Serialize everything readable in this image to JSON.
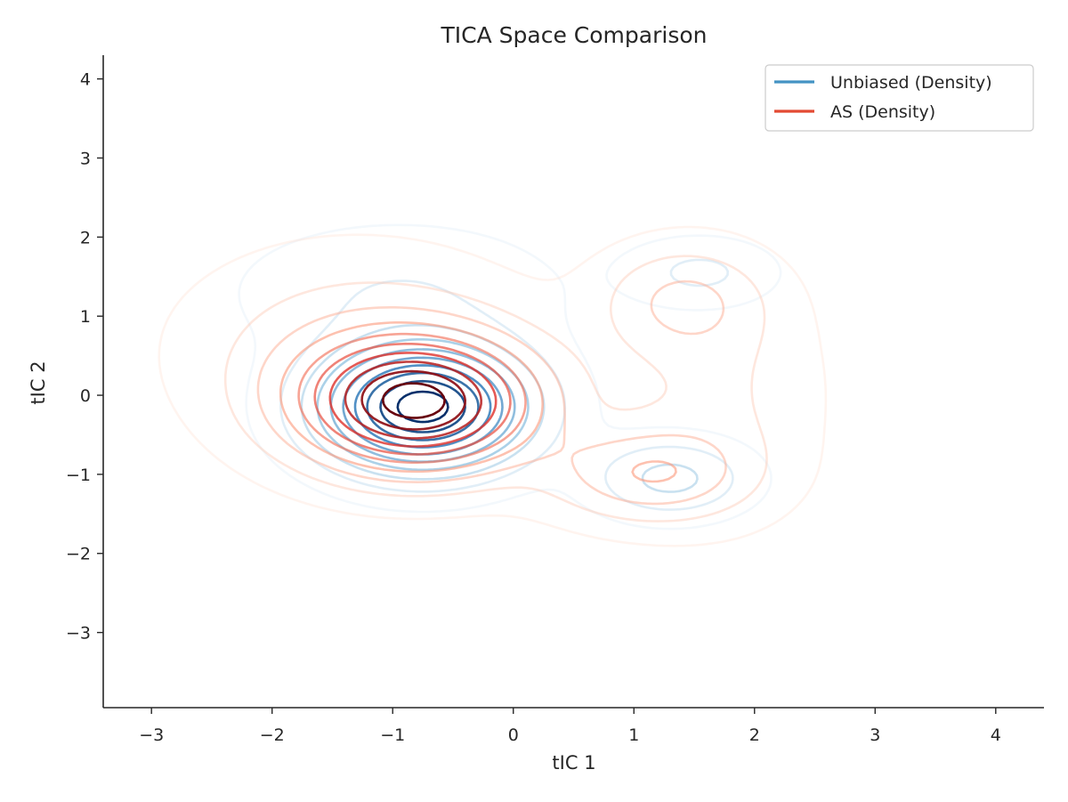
{
  "chart_data": {
    "type": "contour",
    "title": "TICA Space Comparison",
    "xlabel": "tIC 1",
    "ylabel": "tIC 2",
    "xlim": [
      -3.4,
      4.4
    ],
    "ylim": [
      -3.95,
      4.3
    ],
    "xticks": [
      -3,
      -2,
      -1,
      0,
      1,
      2,
      3,
      4
    ],
    "yticks": [
      -3,
      -2,
      -1,
      0,
      1,
      2,
      3,
      4
    ],
    "xtick_labels": [
      "−3",
      "−2",
      "−1",
      "0",
      "1",
      "2",
      "3",
      "4"
    ],
    "ytick_labels": [
      "−3",
      "−2",
      "−1",
      "0",
      "1",
      "2",
      "3",
      "4"
    ],
    "legend_position": "upper right",
    "series": [
      {
        "name": "Unbiased (Density)",
        "legend_color": "#4393c3",
        "colormap": "Blues",
        "levels": 10,
        "components": [
          {
            "cx": -0.75,
            "cy": -0.15,
            "sx": 0.55,
            "sy": 0.5,
            "w": 1.0
          },
          {
            "cx": 1.3,
            "cy": -1.05,
            "sx": 0.42,
            "sy": 0.32,
            "w": 0.22
          },
          {
            "cx": 1.55,
            "cy": 1.55,
            "sx": 0.4,
            "sy": 0.28,
            "w": 0.12
          },
          {
            "cx": -0.95,
            "cy": 1.3,
            "sx": 0.85,
            "sy": 0.55,
            "w": 0.1
          }
        ]
      },
      {
        "name": "AS (Density)",
        "legend_color": "#e34a33",
        "colormap": "Reds",
        "levels": 10,
        "components": [
          {
            "cx": -0.8,
            "cy": -0.1,
            "sx": 0.65,
            "sy": 0.55,
            "w": 1.0
          },
          {
            "cx": 1.1,
            "cy": -1.0,
            "sx": 0.55,
            "sy": 0.4,
            "w": 0.28
          },
          {
            "cx": 1.4,
            "cy": 1.2,
            "sx": 0.45,
            "sy": 0.45,
            "w": 0.2
          },
          {
            "cx": -1.3,
            "cy": 0.6,
            "sx": 0.9,
            "sy": 0.8,
            "w": 0.16
          },
          {
            "cx": 1.7,
            "cy": 0.0,
            "sx": 0.55,
            "sy": 0.95,
            "w": 0.12
          }
        ]
      }
    ]
  }
}
